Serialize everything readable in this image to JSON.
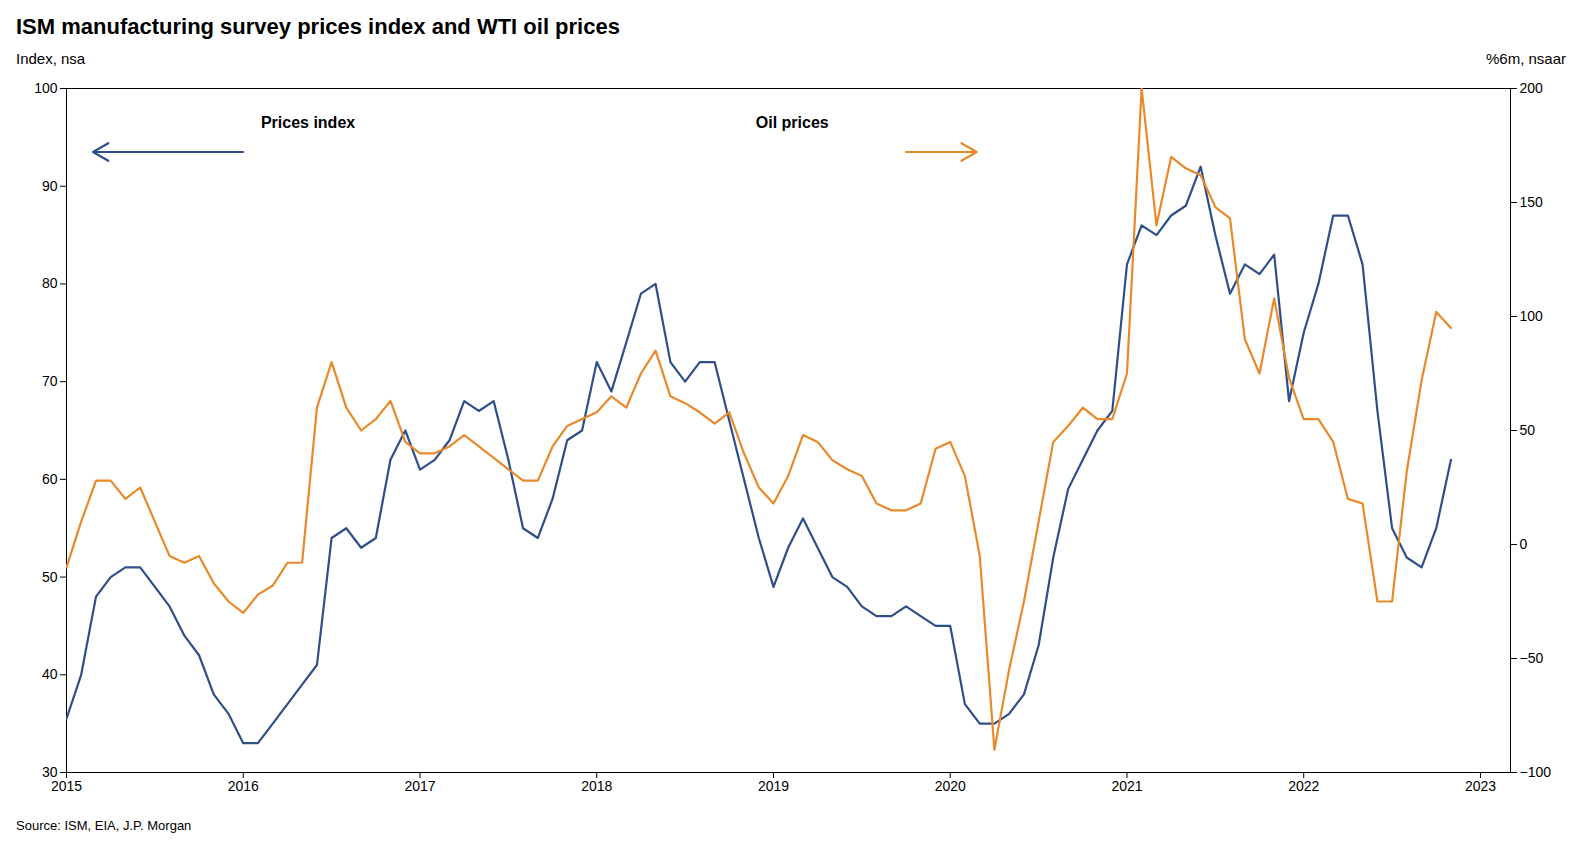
{
  "chart_data": {
    "type": "line",
    "title": "ISM manufacturing survey prices index and WTI oil prices",
    "ylabel": "Index, nsa",
    "y2label": "%6m, nsaar",
    "source": "Source: ISM, EIA, J.P. Morgan",
    "grid": false,
    "xlim": [
      2015.0,
      2023.17
    ],
    "xticks": [
      2015,
      2016,
      2017,
      2018,
      2019,
      2020,
      2021,
      2022,
      2023
    ],
    "ylim": [
      30,
      100
    ],
    "yticks": [
      30,
      40,
      50,
      60,
      70,
      80,
      90,
      100
    ],
    "y2lim": [
      -100,
      200
    ],
    "y2ticks": [
      -100,
      -50,
      0,
      50,
      100,
      150,
      200
    ],
    "x": [
      2015.0,
      2015.083,
      2015.167,
      2015.25,
      2015.333,
      2015.417,
      2015.5,
      2015.583,
      2015.667,
      2015.75,
      2015.833,
      2015.917,
      2016.0,
      2016.083,
      2016.167,
      2016.25,
      2016.333,
      2016.417,
      2016.5,
      2016.583,
      2016.667,
      2016.75,
      2016.833,
      2016.917,
      2017.0,
      2017.083,
      2017.167,
      2017.25,
      2017.333,
      2017.417,
      2017.5,
      2017.583,
      2017.667,
      2017.75,
      2017.833,
      2017.917,
      2018.0,
      2018.083,
      2018.167,
      2018.25,
      2018.333,
      2018.417,
      2018.5,
      2018.583,
      2018.667,
      2018.75,
      2018.833,
      2018.917,
      2019.0,
      2019.083,
      2019.167,
      2019.25,
      2019.333,
      2019.417,
      2019.5,
      2019.583,
      2019.667,
      2019.75,
      2019.833,
      2019.917,
      2020.0,
      2020.083,
      2020.167,
      2020.25,
      2020.333,
      2020.417,
      2020.5,
      2020.583,
      2020.667,
      2020.75,
      2020.833,
      2020.917,
      2021.0,
      2021.083,
      2021.167,
      2021.25,
      2021.333,
      2021.417,
      2021.5,
      2021.583,
      2021.667,
      2021.75,
      2021.833,
      2021.917,
      2022.0,
      2022.083,
      2022.167,
      2022.25,
      2022.333,
      2022.417,
      2022.5,
      2022.583,
      2022.667,
      2022.75,
      2022.833
    ],
    "series": [
      {
        "name": "Prices index",
        "color": "#2E4F8A",
        "values": [
          35.5,
          40,
          48,
          50,
          51,
          51,
          49,
          47,
          44,
          42,
          38,
          36,
          33,
          33,
          35,
          37,
          39,
          41,
          54,
          55,
          53,
          54,
          62,
          65,
          61,
          62,
          64,
          68,
          67,
          68,
          62,
          55,
          54,
          58,
          64,
          65,
          72,
          69,
          74,
          79,
          80,
          72,
          70,
          72,
          72,
          66,
          60,
          54,
          49,
          53,
          56,
          53,
          50,
          49,
          47,
          46,
          46,
          47,
          46,
          45,
          45,
          37,
          35,
          35,
          36,
          38,
          43,
          52,
          59,
          62,
          65,
          67,
          82,
          86,
          85,
          87,
          88,
          92,
          85,
          79,
          82,
          81,
          83,
          68,
          75,
          80,
          87,
          87,
          82,
          67,
          55,
          52,
          51,
          55,
          62
        ]
      },
      {
        "name": "Oil prices",
        "color": "#E8892A",
        "axis": "y2",
        "values": [
          -10,
          10,
          28,
          28,
          20,
          25,
          10,
          -5,
          -8,
          -5,
          -17,
          -25,
          -30,
          -22,
          -18,
          -8,
          -8,
          60,
          80,
          60,
          50,
          55,
          63,
          45,
          40,
          40,
          43,
          48,
          43,
          38,
          33,
          28,
          28,
          43,
          52,
          55,
          58,
          65,
          60,
          75,
          85,
          65,
          62,
          58,
          53,
          58,
          40,
          25,
          18,
          30,
          48,
          45,
          37,
          33,
          30,
          18,
          15,
          15,
          18,
          42,
          45,
          30,
          -5,
          -90,
          -55,
          -25,
          10,
          45,
          52,
          60,
          55,
          55,
          75,
          200,
          140,
          170,
          165,
          162,
          148,
          143,
          90,
          75,
          108,
          73,
          55,
          55,
          45,
          20,
          18,
          -25,
          -25,
          32,
          72,
          102,
          95
        ]
      }
    ]
  }
}
